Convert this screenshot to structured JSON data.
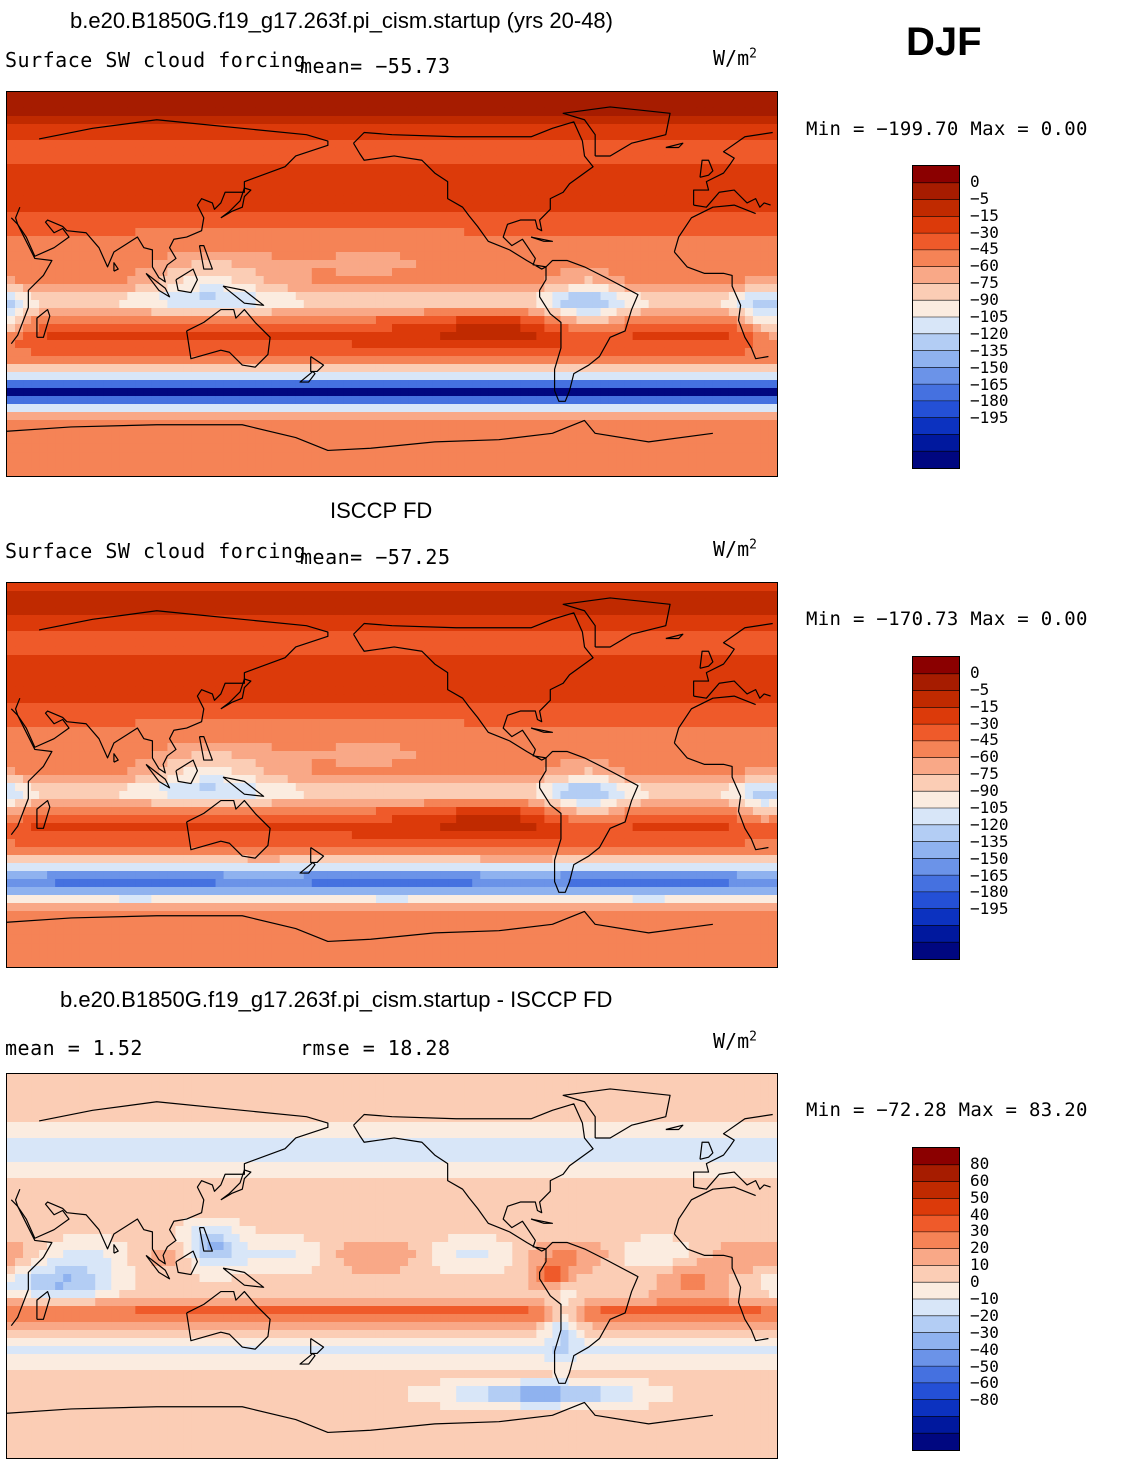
{
  "season": "DJF",
  "panels": [
    {
      "title": "b.e20.B1850G.f19_g17.263f.pi_cism.startup (yrs 20-48)",
      "subtitle_left": "Surface SW cloud forcing",
      "subtitle_mean": "mean=  −55.73",
      "units_base": "W/m",
      "units_exp": "2",
      "minmax": "Min = −199.70 Max =    0.00",
      "field": "model"
    },
    {
      "title": "ISCCP FD",
      "subtitle_left": "Surface SW cloud forcing",
      "subtitle_mean": "mean=  −57.25",
      "units_base": "W/m",
      "units_exp": "2",
      "minmax": "Min = −170.73 Max =    0.00",
      "field": "obs"
    },
    {
      "title": "b.e20.B1850G.f19_g17.263f.pi_cism.startup - ISCCP FD",
      "subtitle_left": "mean =    1.52",
      "subtitle_mean": "rmse =   18.28",
      "units_base": "W/m",
      "units_exp": "2",
      "minmax": "Min = −72.28 Max =  83.20",
      "field": "diff"
    }
  ],
  "chart_data": [
    {
      "type": "heatmap",
      "title": "b.e20.B1850G.f19_g17.263f.pi_cism.startup (yrs 20-48)",
      "variable": "Surface SW cloud forcing",
      "units": "W/m2",
      "mean": -55.73,
      "min": -199.7,
      "max": 0.0,
      "levels": [
        "0",
        "−5",
        "−15",
        "−30",
        "−45",
        "−60",
        "−75",
        "−90",
        "−105",
        "−120",
        "−135",
        "−150",
        "−165",
        "−180",
        "−195"
      ],
      "colors": [
        "#8b0000",
        "#a61c00",
        "#c02a00",
        "#dc3a0a",
        "#ef5a2a",
        "#f58356",
        "#f9a887",
        "#fbcdb5",
        "#fbece0",
        "#d8e6f8",
        "#b3cdf4",
        "#8fb2ef",
        "#6b93e8",
        "#4571e0",
        "#2450d6",
        "#0c32c0",
        "#00189e",
        "#000780"
      ]
    },
    {
      "type": "heatmap",
      "title": "ISCCP FD",
      "variable": "Surface SW cloud forcing",
      "units": "W/m2",
      "mean": -57.25,
      "min": -170.73,
      "max": 0.0,
      "levels": [
        "0",
        "−5",
        "−15",
        "−30",
        "−45",
        "−60",
        "−75",
        "−90",
        "−105",
        "−120",
        "−135",
        "−150",
        "−165",
        "−180",
        "−195"
      ]
    },
    {
      "type": "heatmap",
      "title": "b.e20.B1850G.f19_g17.263f.pi_cism.startup - ISCCP FD",
      "units": "W/m2",
      "mean": 1.52,
      "rmse": 18.28,
      "min": -72.28,
      "max": 83.2,
      "levels": [
        "80",
        "60",
        "50",
        "40",
        "30",
        "20",
        "10",
        "0",
        "−10",
        "−20",
        "−30",
        "−40",
        "−50",
        "−60",
        "−80"
      ]
    }
  ]
}
